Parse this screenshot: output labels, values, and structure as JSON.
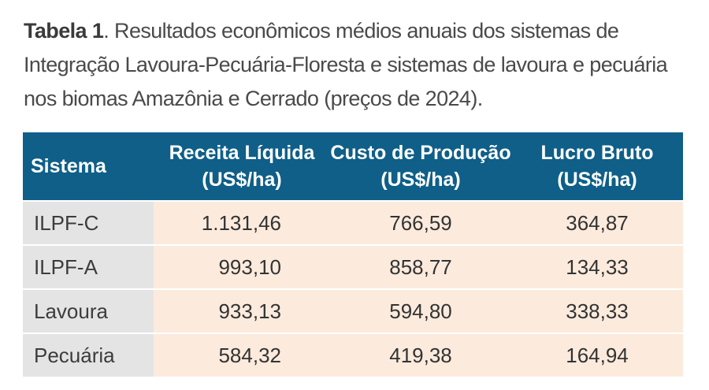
{
  "caption": {
    "label": "Tabela 1",
    "text": ". Resultados econômicos médios anuais dos sistemas de Integração Lavoura-Pecuária-Floresta e sistemas de lavoura e pecuária nos biomas Amazônia e Cerrado (preços de 2024)."
  },
  "table": {
    "headers": [
      {
        "line1": "Sistema",
        "line2": ""
      },
      {
        "line1": "Receita Líquida",
        "line2": "(US$/ha)"
      },
      {
        "line1": "Custo de Produção",
        "line2": "(US$/ha)"
      },
      {
        "line1": "Lucro Bruto",
        "line2": "(US$/ha)"
      }
    ],
    "rows": [
      [
        "ILPF-C",
        "1.131,46",
        "766,59",
        "364,87"
      ],
      [
        "ILPF-A",
        "993,10",
        "858,77",
        "134,33"
      ],
      [
        "Lavoura",
        "933,13",
        "594,80",
        "338,33"
      ],
      [
        "Pecuária",
        "584,32",
        "419,38",
        "164,94"
      ]
    ]
  },
  "colors": {
    "header_bg": "#0f5f88",
    "row_bg": "#fcebdd",
    "first_col_bg": "#e4e4e5"
  }
}
